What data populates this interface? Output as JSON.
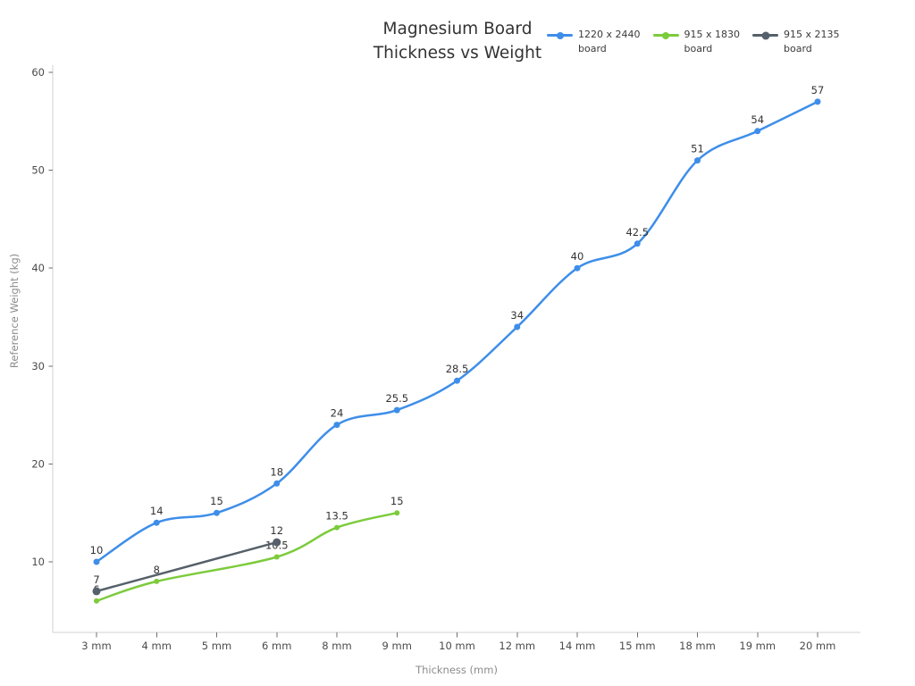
{
  "title_lines": [
    "Magnesium Board",
    "Thickness vs Weight"
  ],
  "chart_data": {
    "type": "line",
    "title": "Magnesium Board Thickness vs Weight",
    "xlabel": "Thickness (mm)",
    "ylabel": "Reference Weight (kg)",
    "categories": [
      "3 mm",
      "4 mm",
      "5 mm",
      "6 mm",
      "8 mm",
      "9 mm",
      "10 mm",
      "12 mm",
      "14 mm",
      "15 mm",
      "18 mm",
      "19 mm",
      "20 mm"
    ],
    "y_ticks": [
      10,
      20,
      30,
      40,
      50,
      60
    ],
    "ylim": [
      2.6,
      60.7
    ],
    "grid": false,
    "legend_position": "top-right",
    "curve": "smooth",
    "data_labels": true,
    "series": [
      {
        "name": "1220 x 2440 board",
        "legend_lines": [
          "1220 x 2440",
          "board"
        ],
        "color": "#3E8EE9",
        "values": [
          10,
          14,
          15,
          18,
          24,
          25.5,
          28.5,
          34,
          40,
          42.5,
          51,
          54,
          57
        ]
      },
      {
        "name": "915 x 1830 board",
        "legend_lines": [
          "915 x 1830",
          "board"
        ],
        "color": "#7CCB3C",
        "values": [
          6,
          8,
          null,
          10.5,
          13.5,
          15,
          null,
          null,
          null,
          null,
          null,
          null,
          null
        ]
      },
      {
        "name": "915 x 2135 board",
        "legend_lines": [
          "915 x 2135",
          "board"
        ],
        "color": "#55606A",
        "values": [
          7,
          null,
          null,
          12,
          null,
          null,
          null,
          null,
          null,
          null,
          null,
          null,
          null
        ]
      }
    ]
  },
  "style_colors": {
    "axis_line": "#d2d2d2",
    "tick_mark": "#6f6f6f",
    "tick_label": "#4a4a4a",
    "data_label": "#333333",
    "axis_title": "#8c8c8c",
    "title": "#333333"
  }
}
